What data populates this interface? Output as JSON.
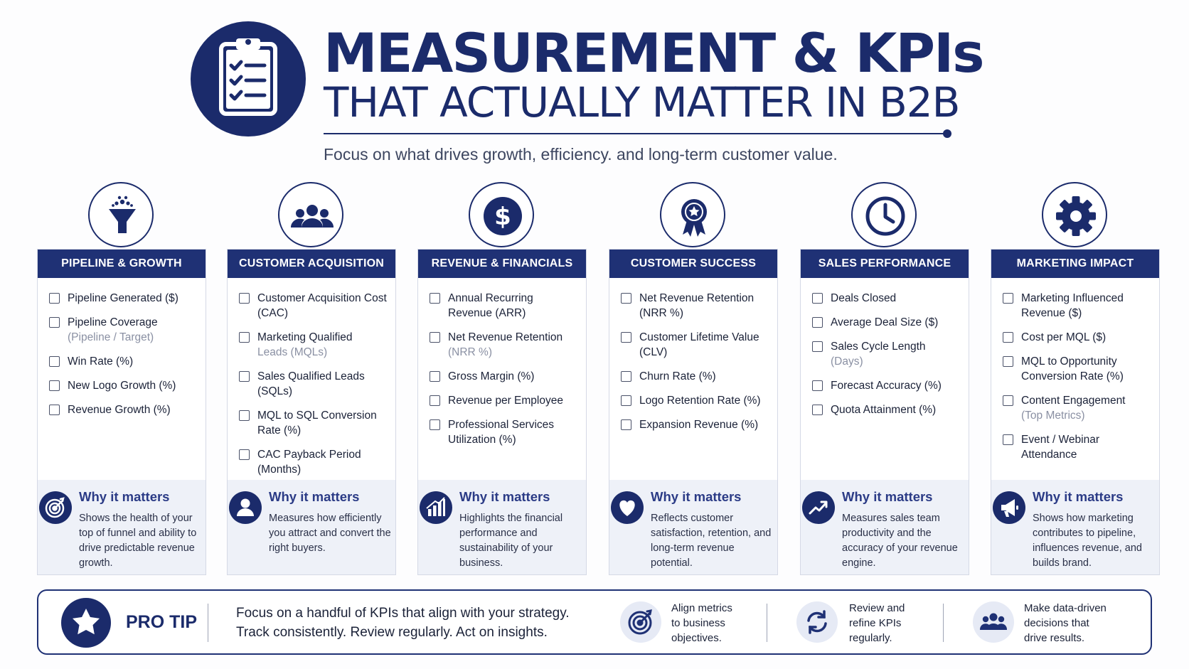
{
  "header": {
    "title": "MEASUREMENT & KPIs",
    "subtitle": "THAT ACTUALLY MATTER IN B2B",
    "tagline": "Focus on what drives growth, efficiency. and long-term customer value."
  },
  "colors": {
    "navy": "#1b2b6b",
    "header_bar": "#1f3175",
    "why_bg": "#eef1f8",
    "accent_text": "#2b3b86"
  },
  "categories": [
    {
      "icon": "funnel-icon",
      "title": "PIPELINE & GROWTH",
      "kpis": [
        {
          "label": "Pipeline Generated ($)",
          "sub": ""
        },
        {
          "label": "Pipeline Coverage",
          "sub": "(Pipeline / Target)"
        },
        {
          "label": "Win Rate (%)",
          "sub": ""
        },
        {
          "label": "New Logo Growth (%)",
          "sub": ""
        },
        {
          "label": "Revenue Growth (%)",
          "sub": ""
        }
      ],
      "why_icon": "target-icon",
      "why_title": "Why it matters",
      "why_text": "Shows the health of your top of funnel and ability to drive predictable revenue growth."
    },
    {
      "icon": "people-group-icon",
      "title": "CUSTOMER ACQUISITION",
      "kpis": [
        {
          "label": "Customer Acquisition Cost (CAC)",
          "sub": ""
        },
        {
          "label": "Marketing Qualified",
          "sub": "Leads (MQLs)"
        },
        {
          "label": "Sales Qualified Leads (SQLs)",
          "sub": ""
        },
        {
          "label": "MQL to SQL Conversion Rate (%)",
          "sub": ""
        },
        {
          "label": "CAC Payback Period (Months)",
          "sub": ""
        }
      ],
      "why_icon": "person-icon",
      "why_title": "Why it matters",
      "why_text": "Measures how efficiently you attract and convert the right buyers."
    },
    {
      "icon": "dollar-icon",
      "title": "REVENUE & FINANCIALS",
      "kpis": [
        {
          "label": "Annual Recurring Revenue (ARR)",
          "sub": ""
        },
        {
          "label": "Net Revenue Retention",
          "sub": "(NRR %)"
        },
        {
          "label": "Gross Margin (%)",
          "sub": ""
        },
        {
          "label": "Revenue per Employee",
          "sub": ""
        },
        {
          "label": "Professional Services Utilization (%)",
          "sub": ""
        }
      ],
      "why_icon": "bar-chart-icon",
      "why_title": "Why it matters",
      "why_text": "Highlights the financial performance and sustainability of your business."
    },
    {
      "icon": "award-ribbon-icon",
      "title": "CUSTOMER SUCCESS",
      "kpis": [
        {
          "label": "Net Revenue Retention (NRR %)",
          "sub": ""
        },
        {
          "label": "Customer Lifetime Value (CLV)",
          "sub": ""
        },
        {
          "label": "Churn Rate (%)",
          "sub": ""
        },
        {
          "label": "Logo Retention Rate (%)",
          "sub": ""
        },
        {
          "label": "Expansion Revenue (%)",
          "sub": ""
        }
      ],
      "why_icon": "heart-icon",
      "why_title": "Why it matters",
      "why_text": "Reflects customer satisfaction, retention, and long-term revenue potential."
    },
    {
      "icon": "clock-icon",
      "title": "SALES PERFORMANCE",
      "kpis": [
        {
          "label": "Deals Closed",
          "sub": ""
        },
        {
          "label": "Average Deal Size ($)",
          "sub": ""
        },
        {
          "label": "Sales Cycle Length",
          "sub": "(Days)"
        },
        {
          "label": "Forecast Accuracy (%)",
          "sub": ""
        },
        {
          "label": "Quota Attainment (%)",
          "sub": ""
        }
      ],
      "why_icon": "trend-up-icon",
      "why_title": "Why it matters",
      "why_text": "Measures sales team productivity and the accuracy of your revenue engine."
    },
    {
      "icon": "gear-icon",
      "title": "MARKETING IMPACT",
      "kpis": [
        {
          "label": "Marketing Influenced Revenue ($)",
          "sub": ""
        },
        {
          "label": "Cost per MQL ($)",
          "sub": ""
        },
        {
          "label": "MQL to Opportunity Conversion Rate (%)",
          "sub": ""
        },
        {
          "label": "Content Engagement",
          "sub": "(Top Metrics)"
        },
        {
          "label": "Event / Webinar Attendance",
          "sub": ""
        }
      ],
      "why_icon": "megaphone-icon",
      "why_title": "Why it matters",
      "why_text": "Shows how marketing contributes to pipeline, influences revenue, and builds brand."
    }
  ],
  "pro_tip": {
    "icon": "star-icon",
    "label": "PRO TIP",
    "line1": "Focus on a handful of KPIs that align with your strategy.",
    "line2": "Track consistently. Review regularly. Act on insights.",
    "items": [
      {
        "icon": "target-icon",
        "lines": [
          "Align metrics",
          "to business",
          "objectives."
        ]
      },
      {
        "icon": "refresh-icon",
        "lines": [
          "Review and",
          "refine KPIs",
          "regularly."
        ]
      },
      {
        "icon": "people-group-icon",
        "lines": [
          "Make data-driven",
          "decisions that",
          "drive results."
        ]
      }
    ]
  }
}
